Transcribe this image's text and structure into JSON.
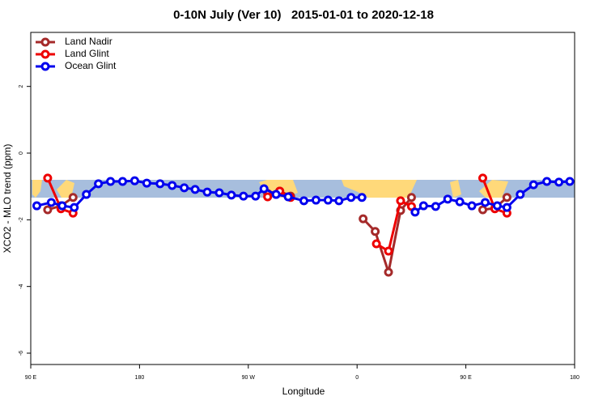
{
  "chart_data": {
    "type": "line",
    "title": "0-10N July (Ver 10)   2015-01-01 to 2020-12-18",
    "x_label": "Longitude",
    "y_label": "XCO2 - MLO trend (ppm)",
    "xlim": [
      90,
      540
    ],
    "xticks": [
      {
        "value": 90,
        "label": "90 E"
      },
      {
        "value": 180,
        "label": "180"
      },
      {
        "value": 270,
        "label": "90 W"
      },
      {
        "value": 360,
        "label": "0"
      },
      {
        "value": 450,
        "label": "90 E"
      },
      {
        "value": 540,
        "label": "180"
      }
    ],
    "ylim": [
      -6.34,
      3.62
    ],
    "yticks": [
      2,
      0,
      -2,
      -4,
      -6
    ],
    "legend": "top-left",
    "series": [
      {
        "name": "Land Nadir",
        "color": "#a52a2a",
        "x": [
          104,
          115,
          125,
          null,
          286,
          296,
          305,
          null,
          365,
          375,
          386,
          396,
          405,
          null,
          464,
          474,
          484
        ],
        "values": [
          -1.7,
          -1.58,
          -1.33,
          null,
          -1.21,
          -1.14,
          -1.29,
          null,
          -1.97,
          -2.35,
          -3.57,
          -1.72,
          -1.33,
          null,
          -1.7,
          -1.65,
          -1.33
        ]
      },
      {
        "name": "Land Glint",
        "color": "#ee0000",
        "x": [
          104,
          115,
          125,
          null,
          286,
          296,
          305,
          null,
          376,
          386,
          396,
          405,
          null,
          464,
          474,
          484
        ],
        "values": [
          -0.75,
          -1.67,
          -1.8,
          null,
          -1.31,
          -1.14,
          -1.33,
          null,
          -2.72,
          -2.94,
          -1.43,
          -1.6,
          null,
          -0.75,
          -1.67,
          -1.8
        ]
      },
      {
        "name": "Ocean Glint",
        "color": "#0000ee",
        "x": [
          95,
          107,
          116,
          126,
          136,
          146,
          156,
          166,
          176,
          186,
          197,
          207,
          217,
          226,
          236,
          246,
          256,
          266,
          276,
          283,
          293,
          303,
          316,
          326,
          336,
          345,
          355,
          364,
          null,
          408,
          415,
          425,
          435,
          445,
          455,
          466,
          476,
          484,
          495,
          506,
          517,
          527,
          536
        ],
        "values": [
          -1.58,
          -1.48,
          -1.58,
          -1.63,
          -1.24,
          -0.92,
          -0.85,
          -0.85,
          -0.83,
          -0.9,
          -0.92,
          -0.97,
          -1.04,
          -1.09,
          -1.17,
          -1.19,
          -1.26,
          -1.29,
          -1.29,
          -1.07,
          -1.24,
          -1.31,
          -1.43,
          -1.41,
          -1.41,
          -1.43,
          -1.33,
          -1.33,
          null,
          -1.77,
          -1.58,
          -1.6,
          -1.38,
          -1.46,
          -1.58,
          -1.48,
          -1.58,
          -1.63,
          -1.24,
          -0.95,
          -0.85,
          -0.87,
          -0.85
        ]
      }
    ]
  }
}
